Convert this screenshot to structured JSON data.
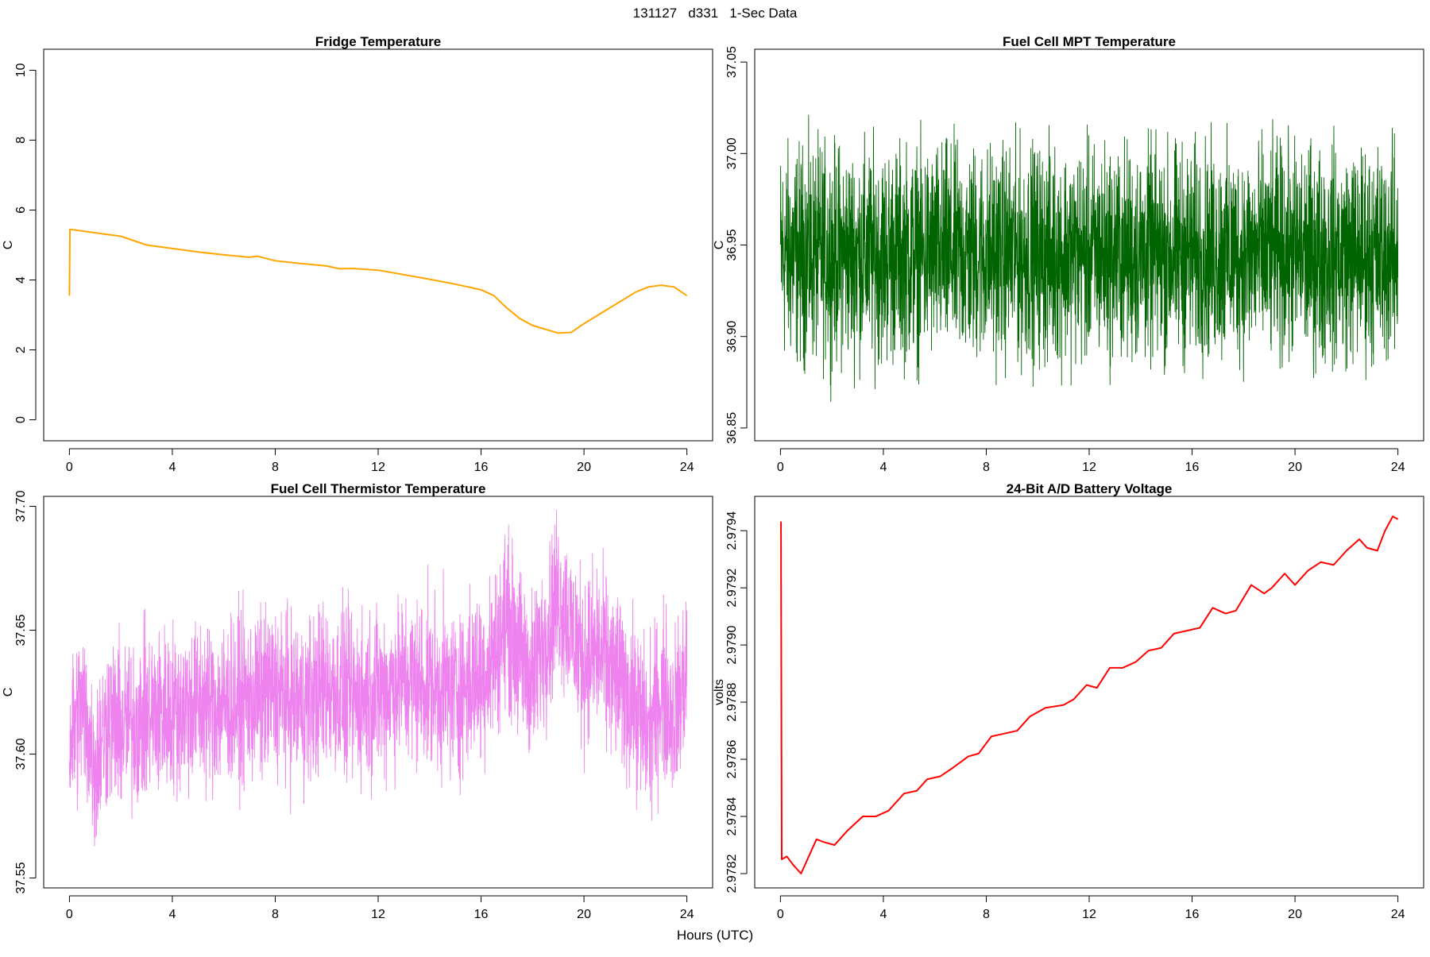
{
  "page": {
    "title": "131127   d331   1-Sec Data",
    "xlabel": "Hours (UTC)"
  },
  "chart_data": [
    {
      "type": "line",
      "title": "Fridge Temperature",
      "ylabel": "C",
      "color": "#FFA500",
      "xlim": [
        -1,
        25
      ],
      "ylim": [
        -0.6,
        10.6
      ],
      "xticks": [
        0,
        4,
        8,
        12,
        16,
        20,
        24
      ],
      "yticks": [
        0,
        2,
        4,
        6,
        8,
        10
      ],
      "ytick_labels": [
        "0",
        "2",
        "4",
        "6",
        "8",
        "10"
      ],
      "noise": 0,
      "x": [
        0,
        0.02,
        0.5,
        1,
        2,
        3,
        4,
        5,
        6,
        7,
        7.3,
        8,
        9,
        10,
        10.5,
        11,
        12,
        13,
        14,
        15,
        16,
        16.5,
        17,
        17.5,
        18,
        19,
        19.5,
        20,
        21,
        22,
        22.5,
        23,
        23.5,
        24
      ],
      "y": [
        3.55,
        5.45,
        5.4,
        5.35,
        5.25,
        5.0,
        4.9,
        4.8,
        4.72,
        4.65,
        4.68,
        4.55,
        4.47,
        4.4,
        4.32,
        4.33,
        4.28,
        4.15,
        4.02,
        3.88,
        3.72,
        3.55,
        3.2,
        2.9,
        2.7,
        2.48,
        2.5,
        2.75,
        3.2,
        3.65,
        3.8,
        3.85,
        3.8,
        3.55
      ]
    },
    {
      "type": "line",
      "title": "Fuel Cell MPT Temperature",
      "ylabel": "C",
      "color": "#006400",
      "xlim": [
        -1,
        25
      ],
      "ylim": [
        36.843,
        37.057
      ],
      "xticks": [
        0,
        4,
        8,
        12,
        16,
        20,
        24
      ],
      "yticks": [
        36.85,
        36.9,
        36.95,
        37.0,
        37.05
      ],
      "ytick_labels": [
        "36.85",
        "36.90",
        "36.95",
        "37.00",
        "37.05"
      ],
      "noise": 0.085,
      "x": [
        0,
        2,
        4,
        6,
        8,
        10,
        12,
        14,
        16,
        18,
        20,
        22,
        24
      ],
      "y": [
        36.945,
        36.945,
        36.945,
        36.945,
        36.945,
        36.945,
        36.945,
        36.945,
        36.945,
        36.945,
        36.945,
        36.945,
        36.945
      ]
    },
    {
      "type": "line",
      "title": "Fuel Cell Thermistor Temperature",
      "ylabel": "C",
      "color": "#EE82EE",
      "xlim": [
        -1,
        25
      ],
      "ylim": [
        37.546,
        37.704
      ],
      "xticks": [
        0,
        4,
        8,
        12,
        16,
        20,
        24
      ],
      "yticks": [
        37.55,
        37.6,
        37.65,
        37.7
      ],
      "ytick_labels": [
        "37.55",
        "37.60",
        "37.65",
        "37.70"
      ],
      "noise": 0.05,
      "x": [
        0,
        0.5,
        1,
        1.5,
        2,
        3,
        4,
        5,
        6,
        7,
        8,
        9,
        10,
        11,
        12,
        13,
        14,
        15,
        16,
        16.5,
        17,
        17.5,
        18,
        18.5,
        19,
        19.5,
        20,
        20.5,
        21,
        22,
        22.5,
        23,
        23.5,
        24
      ],
      "y": [
        37.605,
        37.62,
        37.595,
        37.615,
        37.61,
        37.615,
        37.618,
        37.62,
        37.62,
        37.622,
        37.625,
        37.62,
        37.628,
        37.622,
        37.625,
        37.63,
        37.628,
        37.625,
        37.632,
        37.64,
        37.655,
        37.64,
        37.63,
        37.648,
        37.665,
        37.65,
        37.638,
        37.642,
        37.635,
        37.62,
        37.608,
        37.625,
        37.615,
        37.632
      ]
    },
    {
      "type": "line",
      "title": "24-Bit A/D Battery Voltage",
      "ylabel": "volts",
      "color": "#FF0000",
      "xlim": [
        -1,
        25
      ],
      "ylim": [
        2.97815,
        2.97952
      ],
      "xticks": [
        0,
        4,
        8,
        12,
        16,
        20,
        24
      ],
      "yticks": [
        2.9782,
        2.9784,
        2.9786,
        2.9788,
        2.979,
        2.9792,
        2.9794
      ],
      "ytick_labels": [
        "2.9782",
        "2.9784",
        "2.9786",
        "2.9788",
        "2.9790",
        "2.9792",
        "2.9794"
      ],
      "noise": 0,
      "x": [
        0,
        0.02,
        0.05,
        0.25,
        0.5,
        0.8,
        1.0,
        1.4,
        1.7,
        2.1,
        2.6,
        3.2,
        3.7,
        4.2,
        4.8,
        5.3,
        5.7,
        6.2,
        6.7,
        7.3,
        7.7,
        8.2,
        8.7,
        9.2,
        9.7,
        10.3,
        11.0,
        11.4,
        11.9,
        12.3,
        12.8,
        13.3,
        13.8,
        14.3,
        14.8,
        15.3,
        15.8,
        16.3,
        16.8,
        17.3,
        17.7,
        18.3,
        18.8,
        19.1,
        19.6,
        20.0,
        20.5,
        21.0,
        21.5,
        22.0,
        22.5,
        22.8,
        23.2,
        23.5,
        23.8,
        24.0
      ],
      "y": [
        2.97943,
        2.97943,
        2.97825,
        2.97826,
        2.97823,
        2.9782,
        2.97824,
        2.97832,
        2.97831,
        2.9783,
        2.97835,
        2.9784,
        2.9784,
        2.97842,
        2.97848,
        2.97849,
        2.97853,
        2.97854,
        2.97857,
        2.97861,
        2.97862,
        2.97868,
        2.97869,
        2.9787,
        2.97875,
        2.97878,
        2.97879,
        2.97881,
        2.97886,
        2.97885,
        2.97892,
        2.97892,
        2.97894,
        2.97898,
        2.97899,
        2.97904,
        2.97905,
        2.97906,
        2.97913,
        2.97911,
        2.97912,
        2.97921,
        2.97918,
        2.9792,
        2.97925,
        2.97921,
        2.97926,
        2.97929,
        2.97928,
        2.97933,
        2.97937,
        2.97934,
        2.97933,
        2.9794,
        2.97945,
        2.97944
      ]
    }
  ]
}
